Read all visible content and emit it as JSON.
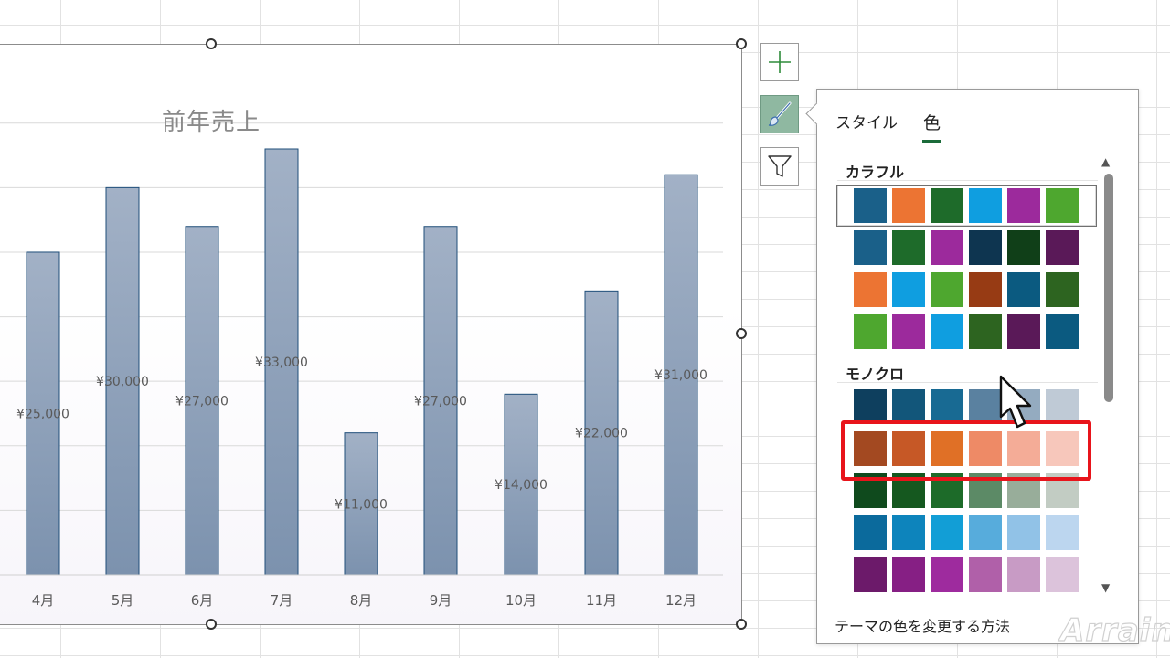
{
  "chart_data": {
    "type": "bar",
    "title": "前年売上",
    "categories": [
      "4月",
      "5月",
      "6月",
      "7月",
      "8月",
      "9月",
      "10月",
      "11月",
      "12月"
    ],
    "values": [
      25000,
      30000,
      27000,
      33000,
      11000,
      27000,
      14000,
      22000,
      31000
    ],
    "data_labels": [
      "¥25,000",
      "¥30,000",
      "¥27,000",
      "¥33,000",
      "¥11,000",
      "¥27,000",
      "¥14,000",
      "¥22,000",
      "¥31,000"
    ],
    "bar_color": "#8a9db5",
    "bar_border": "#1f4e79",
    "grid": true
  },
  "chart_tools": {
    "elements_button": "plus-icon",
    "styles_button": "brush-icon",
    "filter_button": "funnel-icon"
  },
  "panel": {
    "tabs": [
      "スタイル",
      "色"
    ],
    "active_tab": "色",
    "colorful_label": "カラフル",
    "mono_label": "モノクロ",
    "colorful_rows": [
      [
        "#1a6089",
        "#ec7433",
        "#1e6b2a",
        "#0f9ee0",
        "#9c2a9c",
        "#4ea72f"
      ],
      [
        "#1a6089",
        "#1e6b2a",
        "#9c2a9c",
        "#0e3550",
        "#103f18",
        "#5a1958"
      ],
      [
        "#ec7433",
        "#0f9ee0",
        "#4ea72f",
        "#973b14",
        "#0b5a80",
        "#2d6420"
      ],
      [
        "#4ea72f",
        "#9c2a9c",
        "#0f9ee0",
        "#2d6420",
        "#5a1958",
        "#0b5a80"
      ]
    ],
    "mono_rows": [
      [
        "#0e3f5e",
        "#12567a",
        "#186a93",
        "#5a81a0",
        "#94abc0",
        "#bfcad6"
      ],
      [
        "#a34921",
        "#c65826",
        "#e07026",
        "#ee8a66",
        "#f4ac97",
        "#f7c7bb"
      ],
      [
        "#0f4a1d",
        "#15581f",
        "#1d6b29",
        "#5c8a66",
        "#98ad9a",
        "#c2ccc3"
      ],
      [
        "#0b6a9c",
        "#0d84bc",
        "#129ed6",
        "#57acdc",
        "#91c2e7",
        "#bcd6ef"
      ],
      [
        "#6c1a6a",
        "#861f84",
        "#9e2b9e",
        "#b060a9",
        "#c89bc5",
        "#dcc3db"
      ]
    ],
    "footer_link": "テーマの色を変更する方法"
  },
  "watermark": "Arrain"
}
